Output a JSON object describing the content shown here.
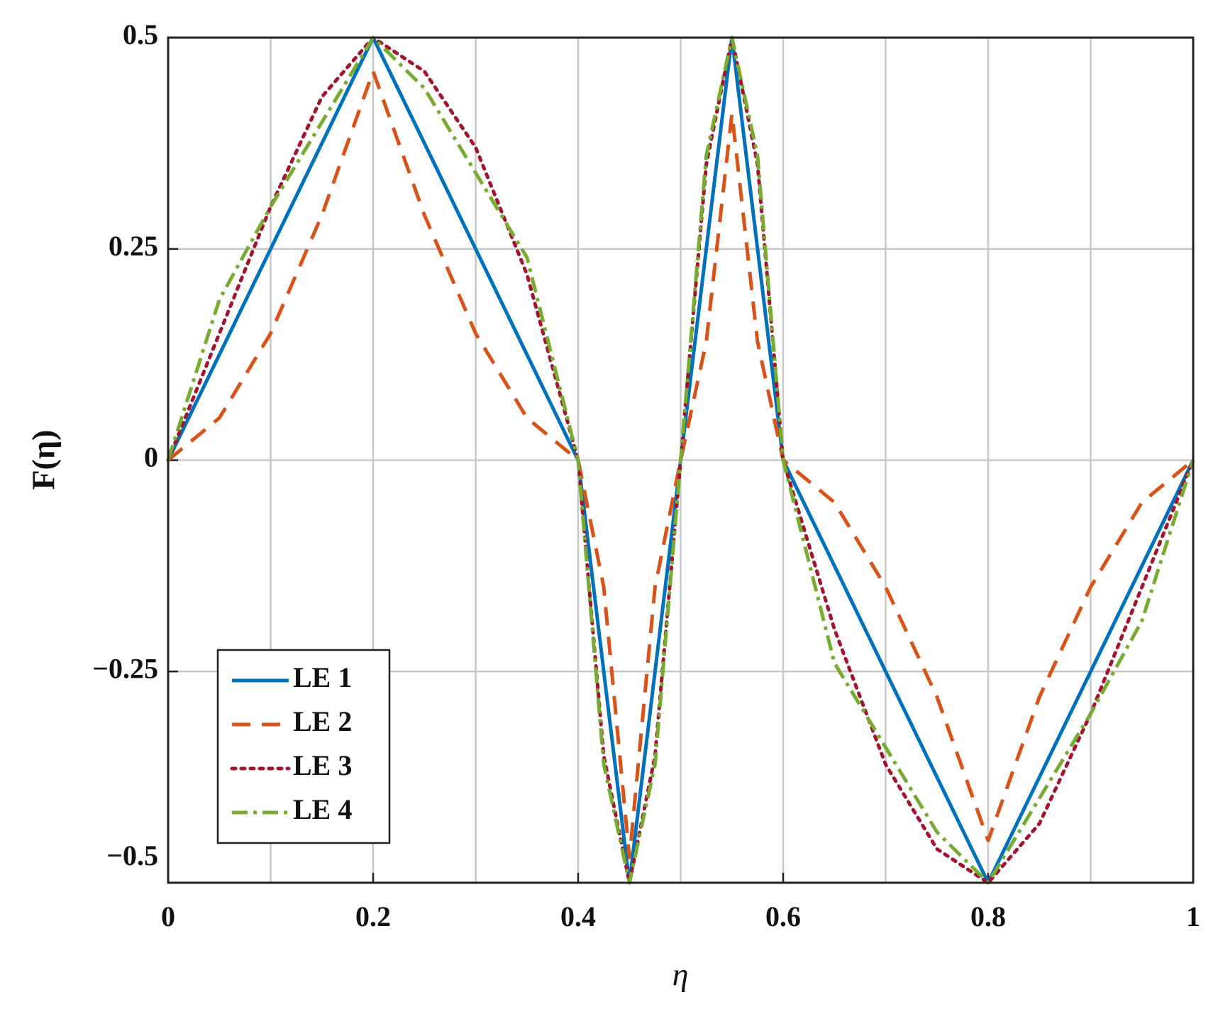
{
  "chart_data": {
    "type": "line",
    "xlabel": "η",
    "ylabel": "F(η)",
    "x": [
      0,
      0.05,
      0.1,
      0.15,
      0.2,
      0.25,
      0.3,
      0.35,
      0.4,
      0.425,
      0.45,
      0.475,
      0.5,
      0.525,
      0.55,
      0.575,
      0.6,
      0.65,
      0.7,
      0.75,
      0.8,
      0.85,
      0.9,
      0.95,
      1
    ],
    "series": [
      {
        "name": "LE 1",
        "color": "#0072bd",
        "line_style": "solid",
        "values": [
          0,
          0.125,
          0.25,
          0.375,
          0.5,
          0.375,
          0.25,
          0.125,
          0,
          -0.25,
          -0.5,
          -0.25,
          0,
          0.25,
          0.5,
          0.25,
          0,
          -0.125,
          -0.25,
          -0.375,
          -0.5,
          -0.375,
          -0.25,
          -0.125,
          0
        ]
      },
      {
        "name": "LE 2",
        "color": "#d95319",
        "line_style": "dashed",
        "values": [
          0,
          0.05,
          0.15,
          0.29,
          0.46,
          0.29,
          0.15,
          0.05,
          0,
          -0.15,
          -0.47,
          -0.15,
          0,
          0.14,
          0.41,
          0.14,
          0,
          -0.05,
          -0.15,
          -0.28,
          -0.45,
          -0.28,
          -0.15,
          -0.05,
          0
        ]
      },
      {
        "name": "LE 3",
        "color": "#a2142f",
        "line_style": "dotted",
        "values": [
          0,
          0.15,
          0.3,
          0.43,
          0.5,
          0.46,
          0.37,
          0.22,
          0,
          -0.35,
          -0.5,
          -0.35,
          0,
          0.35,
          0.5,
          0.35,
          0,
          -0.2,
          -0.36,
          -0.46,
          -0.5,
          -0.43,
          -0.3,
          -0.15,
          0
        ]
      },
      {
        "name": "LE 4",
        "color": "#77ac30",
        "line_style": "dashdot",
        "values": [
          0,
          0.19,
          0.3,
          0.4,
          0.5,
          0.44,
          0.34,
          0.24,
          0,
          -0.36,
          -0.5,
          -0.36,
          0,
          0.36,
          0.5,
          0.36,
          0,
          -0.24,
          -0.34,
          -0.44,
          -0.5,
          -0.4,
          -0.3,
          -0.19,
          0
        ]
      }
    ],
    "xlim": [
      0,
      1
    ],
    "xticks": [
      0,
      0.2,
      0.4,
      0.6,
      0.8,
      1
    ],
    "xminorticks": [
      0.1,
      0.3,
      0.5,
      0.7,
      0.9
    ],
    "ylim": [
      -0.5,
      0.5
    ],
    "yticks": [
      {
        "value": -0.5,
        "label": "−0.5"
      },
      {
        "value": -0.25,
        "label": "−0.25"
      },
      0,
      0.25,
      0.5
    ],
    "grid": true,
    "legend": "lower left"
  }
}
